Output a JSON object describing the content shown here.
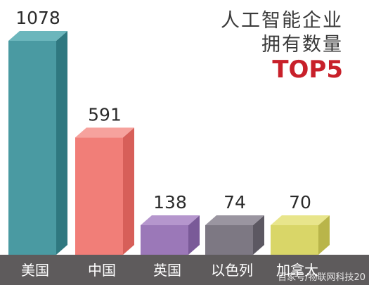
{
  "chart_data": {
    "type": "bar",
    "title": [
      "人工智能企业",
      "拥有数量",
      "TOP5"
    ],
    "categories": [
      "美国",
      "中国",
      "英国",
      "以色列",
      "加拿大"
    ],
    "values": [
      1078,
      591,
      138,
      74,
      70
    ],
    "ylim": [
      0,
      1078
    ],
    "grid": false,
    "legend": "none",
    "colors": {
      "front": [
        "#4a9aa2",
        "#f17e78",
        "#9b78b8",
        "#7d7883",
        "#d9d668"
      ],
      "side": [
        "#2f7880",
        "#d75f59",
        "#7a5a98",
        "#5c5862",
        "#b9b54a"
      ],
      "top": [
        "#6cb6bc",
        "#f6a29d",
        "#b596cd",
        "#9a95a0",
        "#e8e58b"
      ],
      "baseline_band": "#5e5b5c",
      "title_accent": "#c8202a"
    }
  },
  "watermark": "百家号/物联网科技20"
}
